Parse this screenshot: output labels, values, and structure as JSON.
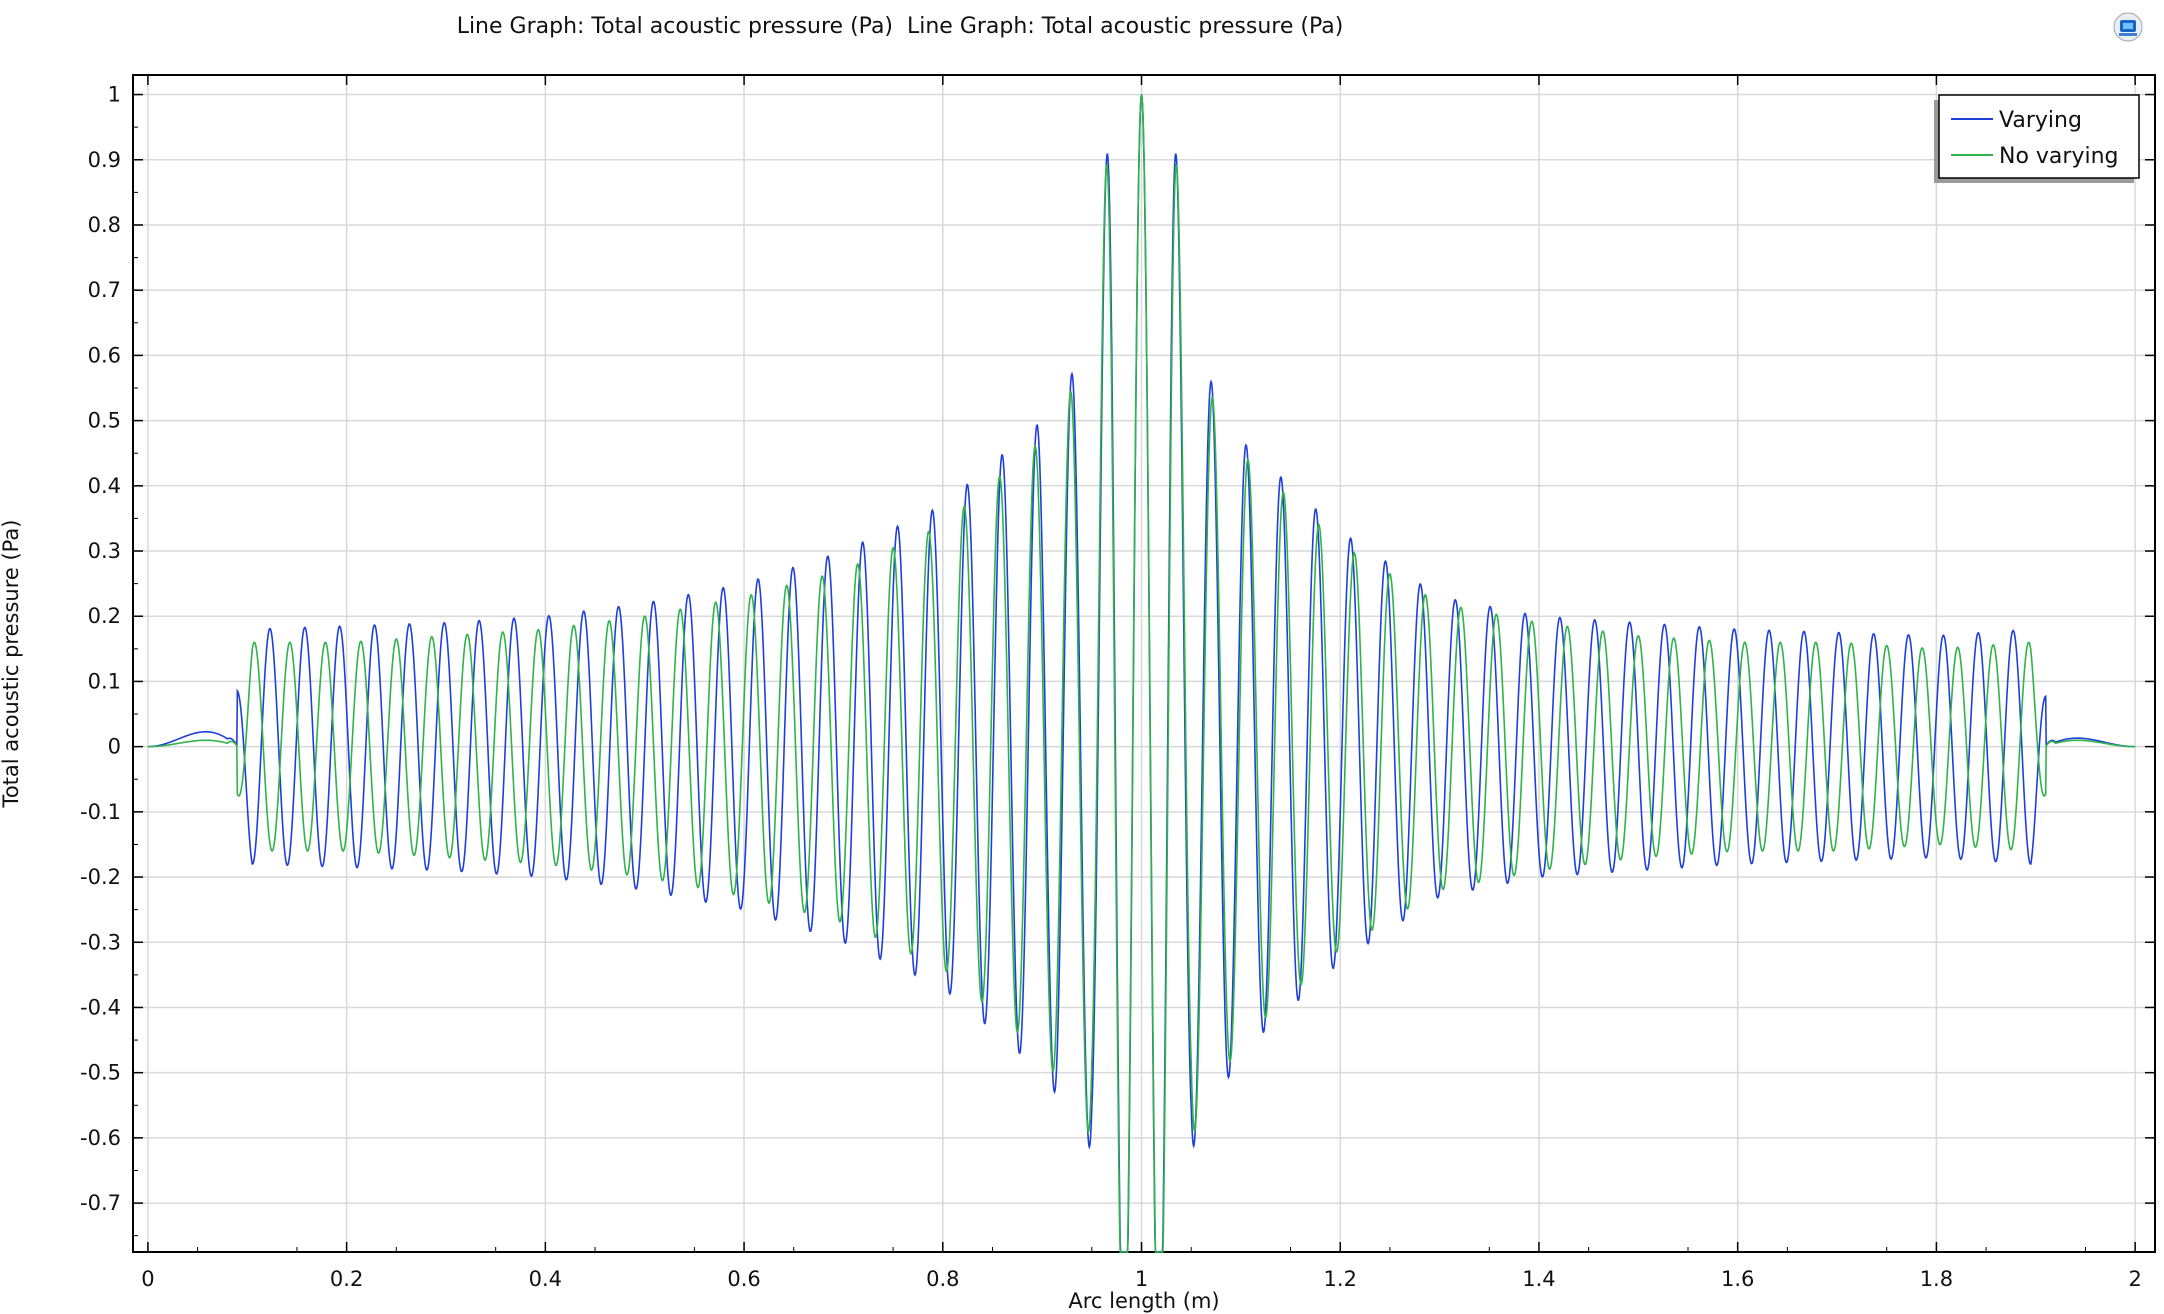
{
  "window": {
    "title": "Line Graph: Total acoustic pressure (Pa)  Line Graph: Total acoustic pressure (Pa)",
    "icon": "comsol-logo-icon"
  },
  "colors": {
    "varying": "#1f3fdc",
    "no_varying": "#2fb34a",
    "grid": "#d9d9d9",
    "axis": "#000000"
  },
  "chart_data": {
    "type": "line",
    "title": "Line Graph: Total acoustic pressure (Pa)  Line Graph: Total acoustic pressure (Pa)",
    "xlabel": "Arc length (m)",
    "ylabel": "Total acoustic pressure (Pa)",
    "xlim": [
      -0.015,
      2.02
    ],
    "ylim": [
      -0.775,
      1.03
    ],
    "grid": true,
    "legend_position": "top-right",
    "x_ticks": [
      "0",
      "0.2",
      "0.4",
      "0.6",
      "0.8",
      "1",
      "1.2",
      "1.4",
      "1.6",
      "1.8",
      "2"
    ],
    "x_tick_values": [
      0,
      0.2,
      0.4,
      0.6,
      0.8,
      1,
      1.2,
      1.4,
      1.6,
      1.8,
      2
    ],
    "y_ticks": [
      "1",
      "0.9",
      "0.8",
      "0.7",
      "0.6",
      "0.5",
      "0.4",
      "0.3",
      "0.2",
      "0.1",
      "0",
      "-0.1",
      "-0.2",
      "-0.3",
      "-0.4",
      "-0.5",
      "-0.6",
      "-0.7"
    ],
    "y_tick_values": [
      1,
      0.9,
      0.8,
      0.7,
      0.6,
      0.5,
      0.4,
      0.3,
      0.2,
      0.1,
      0,
      -0.1,
      -0.2,
      -0.3,
      -0.4,
      -0.5,
      -0.6,
      -0.7
    ],
    "series": [
      {
        "name": "Varying",
        "color": "#1f3fdc",
        "source_x": 1.0,
        "left_start": 0.105,
        "right_end": 1.895,
        "cycles_per_m": 28.5,
        "envelope_x": [
          0.0,
          0.08,
          0.105,
          0.2,
          0.3,
          0.4,
          0.5,
          0.6,
          0.7,
          0.8,
          0.9,
          0.95,
          0.97,
          1.0,
          1.03,
          1.05,
          1.1,
          1.2,
          1.3,
          1.4,
          1.5,
          1.6,
          1.7,
          1.8,
          1.895,
          1.92,
          2.0
        ],
        "envelope_y": [
          0.0,
          0.035,
          0.18,
          0.185,
          0.19,
          0.2,
          0.22,
          0.25,
          0.3,
          0.37,
          0.5,
          0.62,
          1.0,
          1.0,
          1.0,
          0.62,
          0.47,
          0.33,
          0.23,
          0.2,
          0.19,
          0.18,
          0.175,
          0.17,
          0.18,
          0.02,
          0.0
        ]
      },
      {
        "name": "No varying",
        "color": "#2fb34a",
        "source_x": 1.0,
        "left_start": 0.105,
        "right_end": 1.895,
        "cycles_per_m": 28.0,
        "envelope_x": [
          0.0,
          0.08,
          0.105,
          0.2,
          0.3,
          0.4,
          0.5,
          0.6,
          0.7,
          0.8,
          0.9,
          0.95,
          0.97,
          1.0,
          1.03,
          1.05,
          1.1,
          1.2,
          1.3,
          1.4,
          1.5,
          1.6,
          1.7,
          1.8,
          1.895,
          1.92,
          2.0
        ],
        "envelope_y": [
          0.0,
          0.015,
          0.16,
          0.16,
          0.17,
          0.18,
          0.2,
          0.23,
          0.27,
          0.34,
          0.47,
          0.6,
          1.0,
          1.0,
          1.0,
          0.6,
          0.45,
          0.31,
          0.22,
          0.19,
          0.17,
          0.16,
          0.16,
          0.15,
          0.16,
          0.015,
          0.0
        ]
      }
    ]
  }
}
